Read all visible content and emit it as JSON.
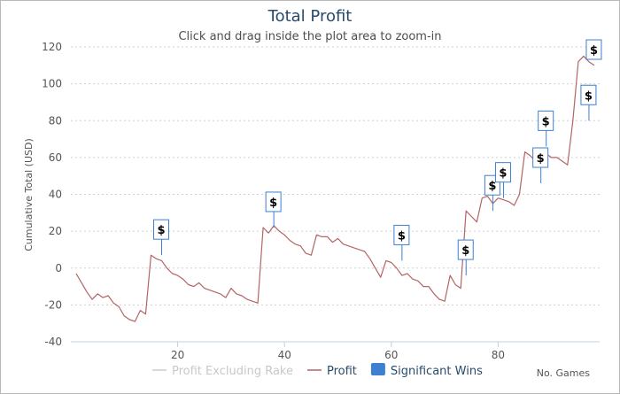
{
  "chart_data": {
    "type": "line",
    "title": "Total Profit",
    "subtitle": "Click and drag inside the plot area to zoom-in",
    "ylabel": "Cumulative Total (USD)",
    "xlabel": "No. Games",
    "xlim": [
      0,
      99
    ],
    "ylim": [
      -40,
      120
    ],
    "xticks": [
      20,
      40,
      60,
      80
    ],
    "yticks": [
      -40,
      -20,
      0,
      20,
      40,
      60,
      80,
      100,
      120
    ],
    "grid": "horizontal-dotted",
    "legend_position": "bottom-center",
    "legend": [
      {
        "label": "Profit Excluding Rake",
        "color": "#cccccc",
        "kind": "line"
      },
      {
        "label": "Profit",
        "color": "#b46464",
        "kind": "line"
      },
      {
        "label": "Significant Wins",
        "color": "#3d7fd0",
        "kind": "flag"
      }
    ],
    "series": [
      {
        "name": "Profit",
        "color": "#b46464",
        "x": [
          1,
          2,
          3,
          4,
          5,
          6,
          7,
          8,
          9,
          10,
          11,
          12,
          13,
          14,
          15,
          16,
          17,
          18,
          19,
          20,
          21,
          22,
          23,
          24,
          25,
          26,
          27,
          28,
          29,
          30,
          31,
          32,
          33,
          34,
          35,
          36,
          37,
          38,
          39,
          40,
          41,
          42,
          43,
          44,
          45,
          46,
          47,
          48,
          49,
          50,
          51,
          52,
          53,
          54,
          55,
          56,
          57,
          58,
          59,
          60,
          61,
          62,
          63,
          64,
          65,
          66,
          67,
          68,
          69,
          70,
          71,
          72,
          73,
          74,
          75,
          76,
          77,
          78,
          79,
          80,
          81,
          82,
          83,
          84,
          85,
          86,
          87,
          88,
          89,
          90,
          91,
          92,
          93,
          94,
          95,
          96,
          97,
          98
        ],
        "y": [
          -3,
          -8,
          -13,
          -17,
          -14,
          -16,
          -15,
          -19,
          -21,
          -26,
          -28,
          -29,
          -23,
          -25,
          7,
          5,
          4,
          0,
          -3,
          -4,
          -6,
          -9,
          -10,
          -8,
          -11,
          -12,
          -13,
          -14,
          -16,
          -11,
          -14,
          -15,
          -17,
          -18,
          -19,
          22,
          19,
          23,
          20,
          18,
          15,
          13,
          12,
          8,
          7,
          18,
          17,
          17,
          14,
          16,
          13,
          12,
          11,
          10,
          9,
          5,
          0,
          -5,
          4,
          3,
          0,
          -4,
          -3,
          -6,
          -7,
          -10,
          -10,
          -14,
          -17,
          -18,
          -4,
          -9,
          -11,
          31,
          28,
          25,
          38,
          39,
          35,
          38,
          37,
          36,
          34,
          40,
          63,
          61,
          58,
          64,
          62,
          60,
          60,
          58,
          56,
          80,
          112,
          115,
          112,
          110
        ]
      }
    ],
    "flags": [
      {
        "x": 17,
        "y": 7,
        "label": "$"
      },
      {
        "x": 38,
        "y": 22,
        "label": "$"
      },
      {
        "x": 62,
        "y": 4,
        "label": "$"
      },
      {
        "x": 74,
        "y": -4,
        "label": "$"
      },
      {
        "x": 79,
        "y": 31,
        "label": "$"
      },
      {
        "x": 81,
        "y": 38,
        "label": "$"
      },
      {
        "x": 88,
        "y": 46,
        "label": "$"
      },
      {
        "x": 89,
        "y": 66,
        "label": "$"
      },
      {
        "x": 97,
        "y": 80,
        "label": "$"
      },
      {
        "x": 98,
        "y": 115,
        "label": "$"
      }
    ]
  }
}
